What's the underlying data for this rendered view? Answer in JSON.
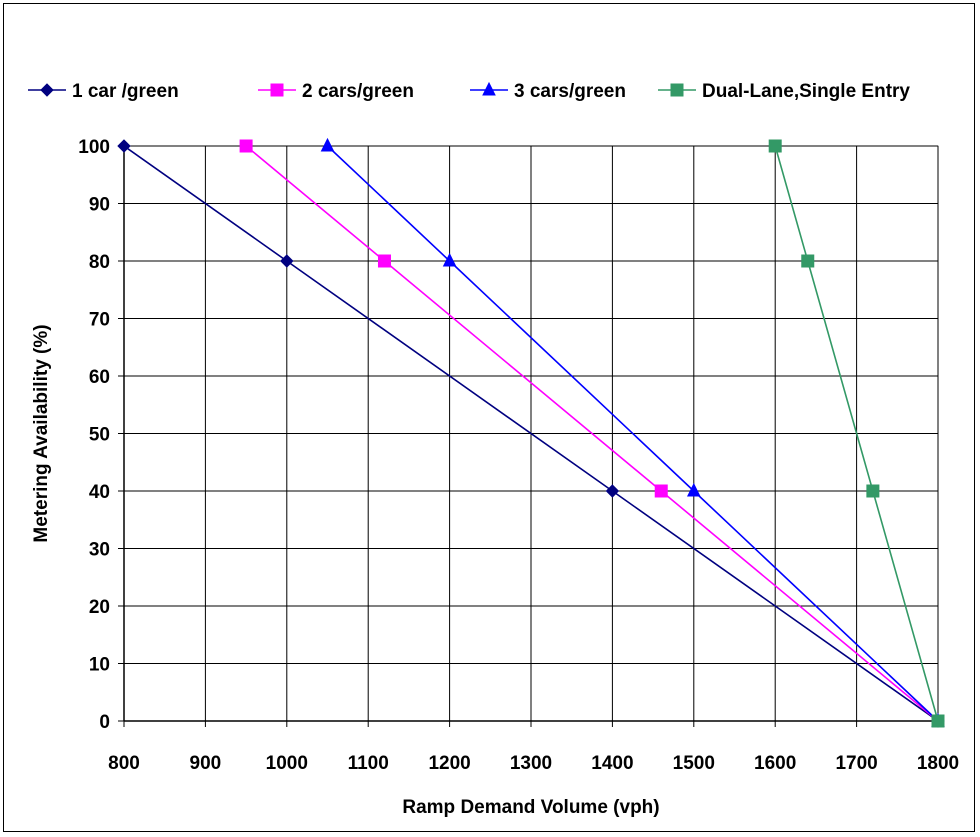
{
  "chart_data": {
    "type": "line",
    "title": "",
    "xlabel": "Ramp Demand Volume (vph)",
    "ylabel": "Metering Availability (%)",
    "xlim": [
      800,
      1800
    ],
    "ylim": [
      0,
      100
    ],
    "x_ticks": [
      "800",
      "900",
      "1000",
      "1100",
      "1200",
      "1300",
      "1400",
      "1500",
      "1600",
      "1700",
      "1800"
    ],
    "y_ticks": [
      "0",
      "10",
      "20",
      "30",
      "40",
      "50",
      "60",
      "70",
      "80",
      "90",
      "100"
    ],
    "grid": true,
    "legend_position": "top",
    "series": [
      {
        "name": "1 car /green",
        "color": "#000080",
        "marker": "diamond",
        "points": [
          [
            800,
            100
          ],
          [
            1000,
            80
          ],
          [
            1400,
            40
          ],
          [
            1800,
            0
          ]
        ]
      },
      {
        "name": "2 cars/green",
        "color": "#FF00FF",
        "marker": "square",
        "points": [
          [
            950,
            100
          ],
          [
            1120,
            80
          ],
          [
            1460,
            40
          ],
          [
            1800,
            0
          ]
        ]
      },
      {
        "name": "3 cars/green",
        "color": "#0000FF",
        "marker": "triangle",
        "points": [
          [
            1050,
            100
          ],
          [
            1200,
            80
          ],
          [
            1500,
            40
          ],
          [
            1800,
            0
          ]
        ]
      },
      {
        "name": "Dual-Lane,Single Entry",
        "color": "#339966",
        "marker": "square",
        "points": [
          [
            1600,
            100
          ],
          [
            1640,
            80
          ],
          [
            1720,
            40
          ],
          [
            1800,
            0
          ]
        ]
      }
    ]
  }
}
